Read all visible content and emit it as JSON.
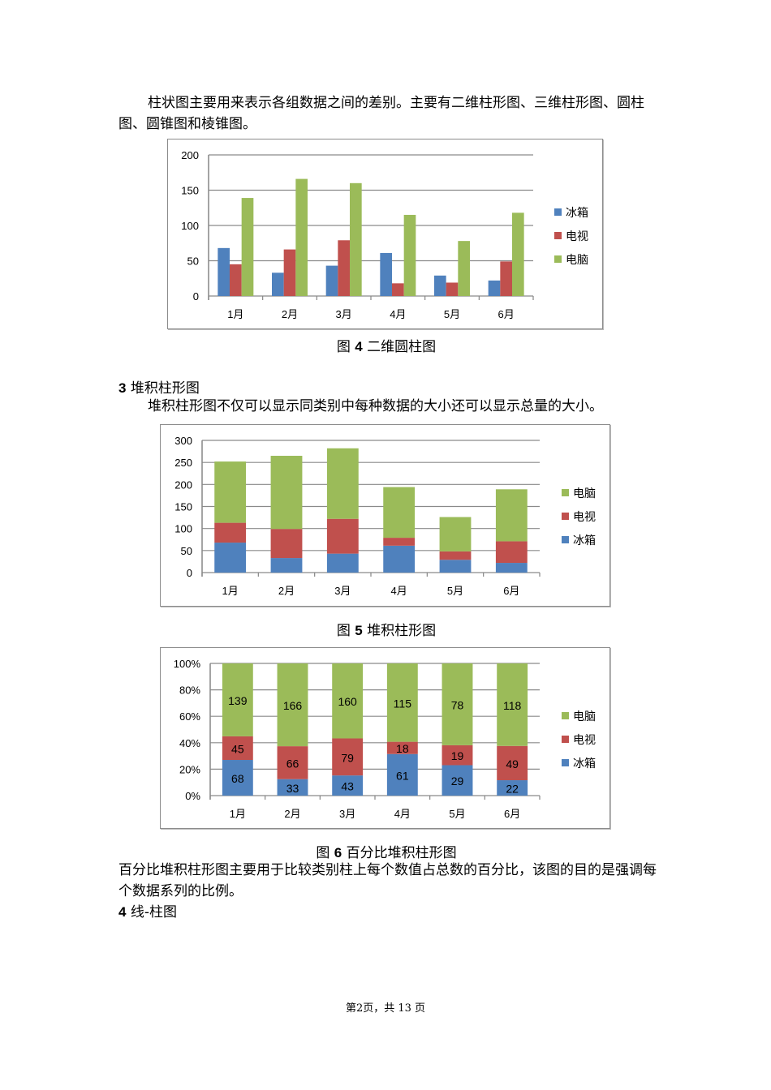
{
  "intro": {
    "text": "柱状图主要用来表示各组数据之间的差别。主要有二维柱形图、三维柱形图、圆柱图、圆锥图和棱锥图。"
  },
  "figure4": {
    "caption_prefix": "图",
    "caption_num": "4",
    "caption_text": "二维圆柱图"
  },
  "section3": {
    "num": "3",
    "title": "堆积柱形图",
    "text": "堆积柱形图不仅可以显示同类别中每种数据的大小还可以显示总量的大小。"
  },
  "figure5": {
    "caption_prefix": "图",
    "caption_num": "5",
    "caption_text": "堆积柱形图"
  },
  "figure6": {
    "caption_prefix": "图",
    "caption_num": "6",
    "caption_text": "百分比堆积柱形图"
  },
  "section3b": {
    "text": "百分比堆积柱形图主要用于比较类别柱上每个数值占总数的百分比，该图的目的是强调每个数据系列的比例。"
  },
  "section4": {
    "num": "4",
    "title": "线-柱图"
  },
  "footer": {
    "text": "第2页，共 13 页"
  },
  "colors": {
    "冰箱": "#4F81BD",
    "电视": "#C0504D",
    "电脑": "#9BBB59"
  },
  "chart_data": [
    {
      "type": "bar",
      "title": "图4 二维圆柱图",
      "categories": [
        "1月",
        "2月",
        "3月",
        "4月",
        "5月",
        "6月"
      ],
      "series": [
        {
          "name": "冰箱",
          "values": [
            68,
            33,
            43,
            61,
            29,
            22
          ]
        },
        {
          "name": "电视",
          "values": [
            45,
            66,
            79,
            18,
            19,
            49
          ]
        },
        {
          "name": "电脑",
          "values": [
            139,
            166,
            160,
            115,
            78,
            118
          ]
        }
      ],
      "yticks": [
        0,
        50,
        100,
        150,
        200
      ],
      "ylim": [
        0,
        200
      ],
      "grid": true,
      "legend_position": "right",
      "legend_order": [
        "冰箱",
        "电视",
        "电脑"
      ]
    },
    {
      "type": "bar",
      "stacked": true,
      "title": "图5 堆积柱形图",
      "categories": [
        "1月",
        "2月",
        "3月",
        "4月",
        "5月",
        "6月"
      ],
      "series": [
        {
          "name": "冰箱",
          "values": [
            68,
            33,
            43,
            61,
            29,
            22
          ]
        },
        {
          "name": "电视",
          "values": [
            45,
            66,
            79,
            18,
            19,
            49
          ]
        },
        {
          "name": "电脑",
          "values": [
            139,
            166,
            160,
            115,
            78,
            118
          ]
        }
      ],
      "yticks": [
        0,
        50,
        100,
        150,
        200,
        250,
        300
      ],
      "ylim": [
        0,
        300
      ],
      "grid": true,
      "legend_position": "right",
      "legend_order": [
        "电脑",
        "电视",
        "冰箱"
      ]
    },
    {
      "type": "bar",
      "stacked": "percent",
      "title": "图6 百分比堆积柱形图",
      "categories": [
        "1月",
        "2月",
        "3月",
        "4月",
        "5月",
        "6月"
      ],
      "series": [
        {
          "name": "冰箱",
          "values": [
            68,
            33,
            43,
            61,
            29,
            22
          ]
        },
        {
          "name": "电视",
          "values": [
            45,
            66,
            79,
            18,
            19,
            49
          ]
        },
        {
          "name": "电脑",
          "values": [
            139,
            166,
            160,
            115,
            78,
            118
          ]
        }
      ],
      "yticks": [
        "0%",
        "20%",
        "40%",
        "60%",
        "80%",
        "100%"
      ],
      "ylim": [
        0,
        100
      ],
      "data_labels": true,
      "grid": true,
      "legend_position": "right",
      "legend_order": [
        "电脑",
        "电视",
        "冰箱"
      ]
    }
  ]
}
